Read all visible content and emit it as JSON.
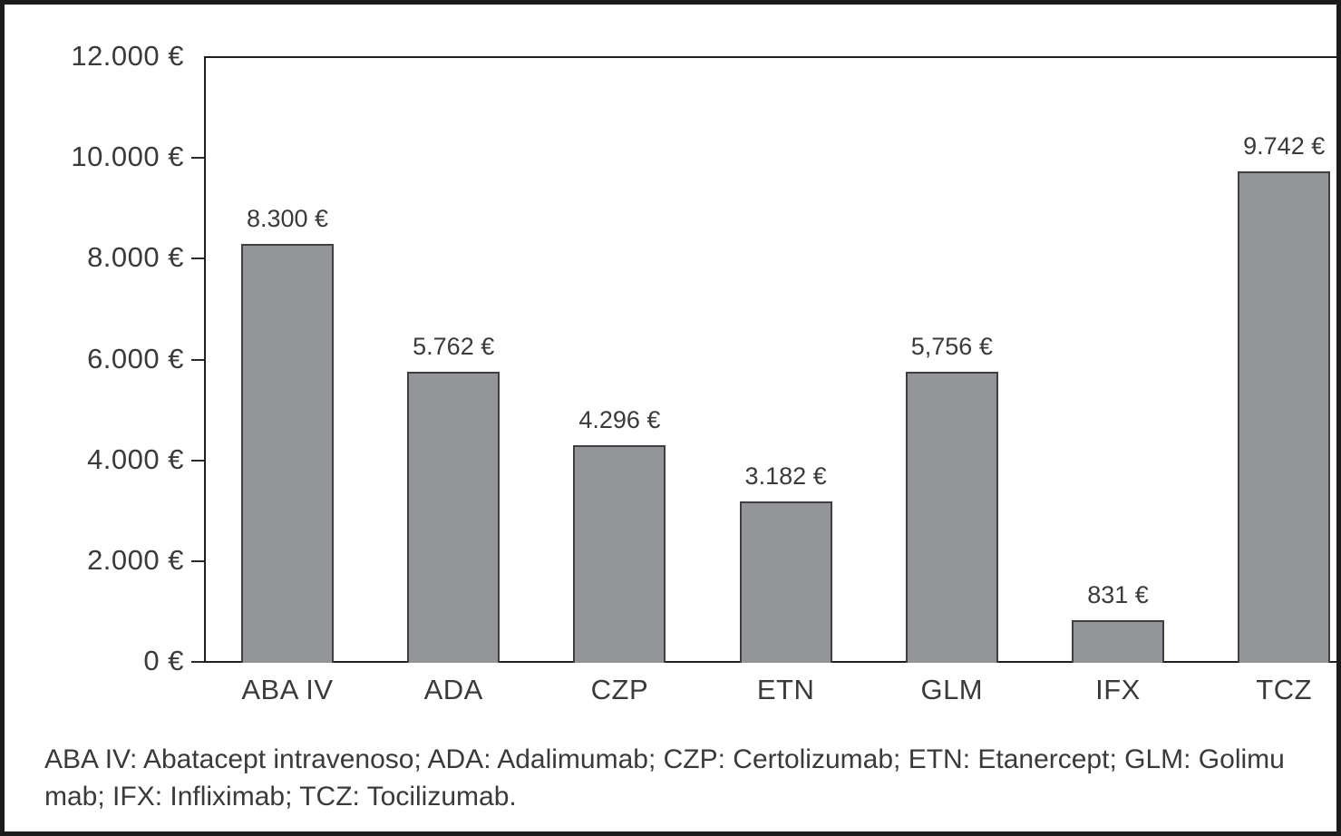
{
  "chart_data": {
    "type": "bar",
    "categories": [
      "ABA IV",
      "ADA",
      "CZP",
      "ETN",
      "GLM",
      "IFX",
      "TCZ"
    ],
    "values": [
      8300,
      5762,
      4296,
      3182,
      5756,
      831,
      9742
    ],
    "value_labels": [
      "8.300 €",
      "5.762 €",
      "4.296 €",
      "3.182 €",
      "5,756 €",
      "831 €",
      "9.742 €"
    ],
    "title": "",
    "xlabel": "",
    "ylabel": "",
    "ylim": [
      0,
      12000
    ],
    "y_ticks": [
      {
        "value": 0,
        "label": "0 €"
      },
      {
        "value": 2000,
        "label": "2.000 €"
      },
      {
        "value": 4000,
        "label": "4.000 €"
      },
      {
        "value": 6000,
        "label": "6.000 €"
      },
      {
        "value": 8000,
        "label": "8.000 €"
      },
      {
        "value": 10000,
        "label": "10.000 €"
      },
      {
        "value": 12000,
        "label": "12.000 €"
      }
    ],
    "grid": false,
    "legend_position": "none",
    "bar_color": "#949599",
    "bar_border_color": "#3f3f41",
    "axis_color": "#1f1f1f",
    "text_color": "#3a3a3c"
  },
  "footnote": {
    "line1": "ABA IV: Abatacept intravenoso; ADA: Adalimumab; CZP: Certolizumab; ETN: Etanercept; GLM: Golimu",
    "line2": "mab; IFX: Infliximab; TCZ: Tocilizumab."
  }
}
